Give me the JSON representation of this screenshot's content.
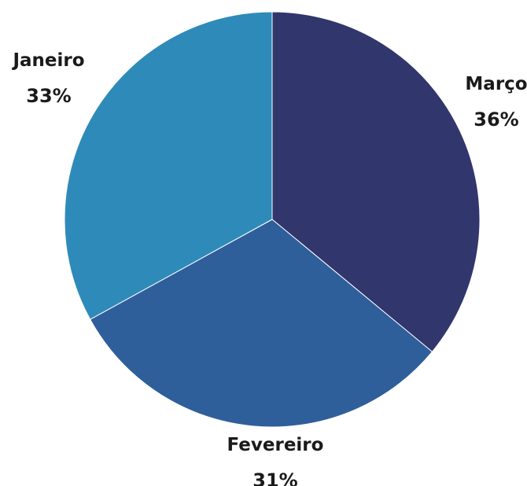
{
  "chart_data": {
    "type": "pie",
    "slices": [
      {
        "label": "Março",
        "value": 36,
        "value_label": "36%",
        "color": "#31366d"
      },
      {
        "label": "Fevereiro",
        "value": 31,
        "value_label": "31%",
        "color": "#2f5f9b"
      },
      {
        "label": "Janeiro",
        "value": 33,
        "value_label": "33%",
        "color": "#2e8bb9"
      }
    ],
    "start_angle": "12 o'clock",
    "direction": "clockwise",
    "legend": "none",
    "slice_border_color": "#ffffff"
  }
}
